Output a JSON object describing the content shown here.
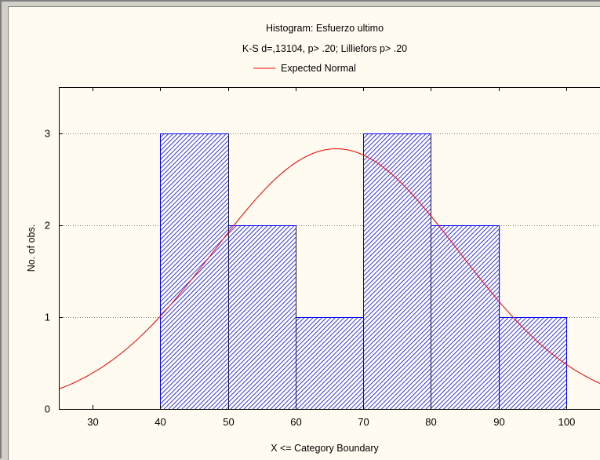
{
  "chart_data": {
    "type": "bar",
    "title": "Histogram: Esfuerzo ultimo",
    "subtitle": "K-S d=,13104, p> .20; Lilliefors p> .20",
    "legend": [
      {
        "name": "Expected Normal",
        "color": "#ff0000"
      }
    ],
    "xlabel": "X <= Category Boundary",
    "ylabel": "No. of obs.",
    "bins": [
      {
        "from": 40,
        "to": 50,
        "count": 3
      },
      {
        "from": 50,
        "to": 60,
        "count": 2
      },
      {
        "from": 60,
        "to": 70,
        "count": 1
      },
      {
        "from": 70,
        "to": 80,
        "count": 3
      },
      {
        "from": 80,
        "to": 90,
        "count": 2
      },
      {
        "from": 90,
        "to": 100,
        "count": 1
      }
    ],
    "expected_normal": {
      "mean": 66,
      "sd": 18.1,
      "peak": 2.83
    },
    "xlim": [
      25,
      105
    ],
    "ylim": [
      0,
      3.5
    ],
    "xticks": [
      30,
      40,
      50,
      60,
      70,
      80,
      90,
      100
    ],
    "yticks": [
      0,
      1,
      2,
      3
    ],
    "grid": "horizontal dotted",
    "colors": {
      "bar_edge": "#0000ff",
      "hatch": "#0000ff",
      "curve": "#ff0000",
      "background": "#fffbf0"
    }
  }
}
